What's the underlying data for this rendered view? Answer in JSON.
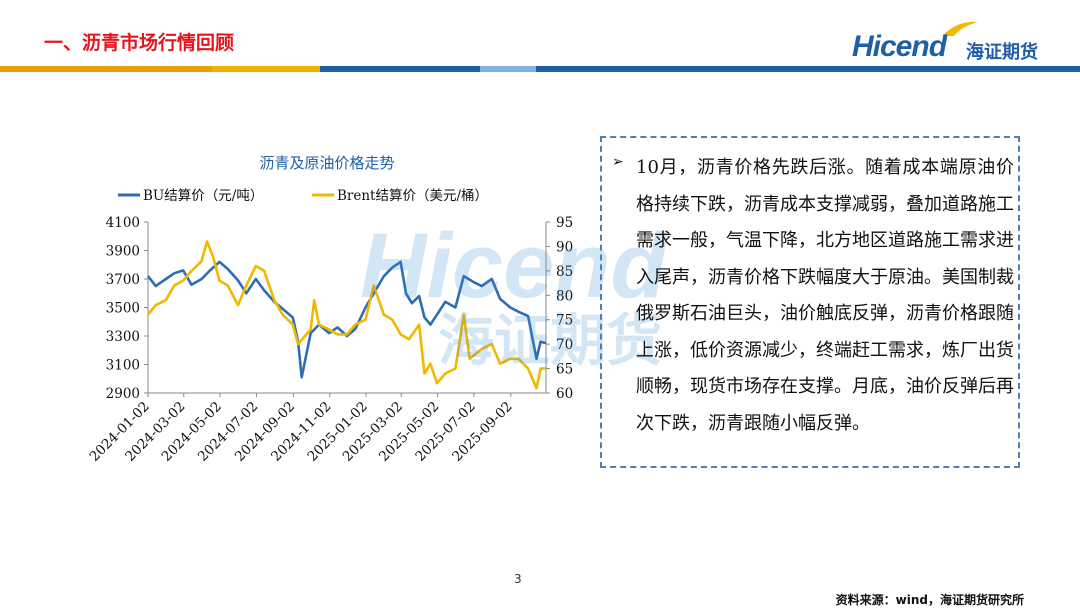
{
  "header": {
    "title": "一、沥青市场行情回顾",
    "logo_text": "Hicend",
    "logo_cn": "海证期货",
    "stripe_colors": [
      "#e8a000",
      "#1f5fa8",
      "#7fb2e5",
      "#1f5fa8"
    ]
  },
  "watermark": {
    "text": "Hicend",
    "cn": "海证期货"
  },
  "chart_data": {
    "type": "line",
    "title": "沥青及原油价格走势",
    "x_ticks": [
      "2024-01-02",
      "2024-03-02",
      "2024-05-02",
      "2024-07-02",
      "2024-09-02",
      "2024-11-02",
      "2025-01-02",
      "2025-03-02",
      "2025-05-02",
      "2025-07-02",
      "2025-09-02"
    ],
    "x_range": [
      "2024-01-02",
      "2025-10-31"
    ],
    "y_left": {
      "min": 2900,
      "max": 4100,
      "step": 200,
      "ticks": [
        "4100",
        "3900",
        "3700",
        "3500",
        "3300",
        "3100",
        "2900"
      ]
    },
    "y_right": {
      "min": 60,
      "max": 95,
      "step": 5,
      "ticks": [
        "95",
        "90",
        "85",
        "80",
        "75",
        "70",
        "65",
        "60"
      ]
    },
    "legend_position": "top",
    "grid": false,
    "series": [
      {
        "name": "BU结算价（元/吨）",
        "axis": "left",
        "color": "#2e6db4",
        "points": [
          [
            "2024-01-02",
            3720
          ],
          [
            "2024-01-15",
            3650
          ],
          [
            "2024-02-01",
            3700
          ],
          [
            "2024-02-15",
            3740
          ],
          [
            "2024-03-01",
            3760
          ],
          [
            "2024-03-15",
            3660
          ],
          [
            "2024-04-01",
            3700
          ],
          [
            "2024-04-15",
            3760
          ],
          [
            "2024-05-01",
            3820
          ],
          [
            "2024-05-15",
            3770
          ],
          [
            "2024-06-01",
            3690
          ],
          [
            "2024-06-15",
            3600
          ],
          [
            "2024-07-01",
            3700
          ],
          [
            "2024-07-15",
            3620
          ],
          [
            "2024-08-01",
            3540
          ],
          [
            "2024-08-15",
            3490
          ],
          [
            "2024-09-01",
            3430
          ],
          [
            "2024-09-10",
            3260
          ],
          [
            "2024-09-16",
            3010
          ],
          [
            "2024-10-01",
            3320
          ],
          [
            "2024-10-15",
            3380
          ],
          [
            "2024-11-01",
            3320
          ],
          [
            "2024-11-15",
            3360
          ],
          [
            "2024-12-01",
            3300
          ],
          [
            "2024-12-15",
            3350
          ],
          [
            "2025-01-01",
            3500
          ],
          [
            "2025-01-15",
            3600
          ],
          [
            "2025-02-01",
            3720
          ],
          [
            "2025-02-15",
            3780
          ],
          [
            "2025-03-01",
            3820
          ],
          [
            "2025-03-10",
            3600
          ],
          [
            "2025-03-20",
            3530
          ],
          [
            "2025-04-01",
            3580
          ],
          [
            "2025-04-10",
            3430
          ],
          [
            "2025-04-20",
            3380
          ],
          [
            "2025-05-01",
            3450
          ],
          [
            "2025-05-15",
            3540
          ],
          [
            "2025-06-01",
            3500
          ],
          [
            "2025-06-15",
            3720
          ],
          [
            "2025-07-01",
            3680
          ],
          [
            "2025-07-15",
            3650
          ],
          [
            "2025-08-01",
            3700
          ],
          [
            "2025-08-15",
            3560
          ],
          [
            "2025-09-01",
            3500
          ],
          [
            "2025-09-15",
            3470
          ],
          [
            "2025-10-01",
            3440
          ],
          [
            "2025-10-15",
            3140
          ],
          [
            "2025-10-22",
            3260
          ],
          [
            "2025-10-31",
            3250
          ]
        ]
      },
      {
        "name": "Brent结算价（美元/桶）",
        "axis": "right",
        "color": "#f2b800",
        "points": [
          [
            "2024-01-02",
            76
          ],
          [
            "2024-01-15",
            78
          ],
          [
            "2024-02-01",
            79
          ],
          [
            "2024-02-15",
            82
          ],
          [
            "2024-03-01",
            83
          ],
          [
            "2024-03-15",
            85
          ],
          [
            "2024-04-01",
            87
          ],
          [
            "2024-04-10",
            91
          ],
          [
            "2024-04-20",
            88
          ],
          [
            "2024-05-01",
            83
          ],
          [
            "2024-05-15",
            82
          ],
          [
            "2024-06-01",
            78
          ],
          [
            "2024-06-15",
            82
          ],
          [
            "2024-07-01",
            86
          ],
          [
            "2024-07-15",
            85
          ],
          [
            "2024-08-01",
            79
          ],
          [
            "2024-08-15",
            76
          ],
          [
            "2024-09-01",
            74
          ],
          [
            "2024-09-10",
            70
          ],
          [
            "2024-10-01",
            73
          ],
          [
            "2024-10-07",
            79
          ],
          [
            "2024-10-15",
            74
          ],
          [
            "2024-11-01",
            73
          ],
          [
            "2024-11-15",
            72
          ],
          [
            "2024-12-01",
            72
          ],
          [
            "2024-12-15",
            74
          ],
          [
            "2025-01-01",
            75
          ],
          [
            "2025-01-15",
            82
          ],
          [
            "2025-02-01",
            76
          ],
          [
            "2025-02-15",
            75
          ],
          [
            "2025-03-01",
            72
          ],
          [
            "2025-03-15",
            71
          ],
          [
            "2025-04-01",
            74
          ],
          [
            "2025-04-10",
            64
          ],
          [
            "2025-04-20",
            66
          ],
          [
            "2025-05-01",
            62
          ],
          [
            "2025-05-15",
            64
          ],
          [
            "2025-06-01",
            65
          ],
          [
            "2025-06-15",
            76
          ],
          [
            "2025-06-25",
            67
          ],
          [
            "2025-07-15",
            69
          ],
          [
            "2025-08-01",
            70
          ],
          [
            "2025-08-15",
            66
          ],
          [
            "2025-09-01",
            67
          ],
          [
            "2025-09-15",
            67
          ],
          [
            "2025-10-01",
            65
          ],
          [
            "2025-10-15",
            61
          ],
          [
            "2025-10-22",
            65
          ],
          [
            "2025-10-31",
            65
          ]
        ]
      }
    ]
  },
  "commentary": {
    "bullet": "➢",
    "text": "10月，沥青价格先跌后涨。随着成本端原油价格持续下跌，沥青成本支撑减弱，叠加道路施工需求一般，气温下降，北方地区道路施工需求进入尾声，沥青价格下跌幅度大于原油。美国制裁俄罗斯石油巨头，油价触底反弹，沥青价格跟随上涨，低价资源减少，终端赶工需求，炼厂出货顺畅，现货市场存在支撑。月底，油价反弹后再次下跌，沥青跟随小幅反弹。"
  },
  "footer": {
    "page": "3",
    "source": "资料来源：wind，海证期货研究所"
  }
}
